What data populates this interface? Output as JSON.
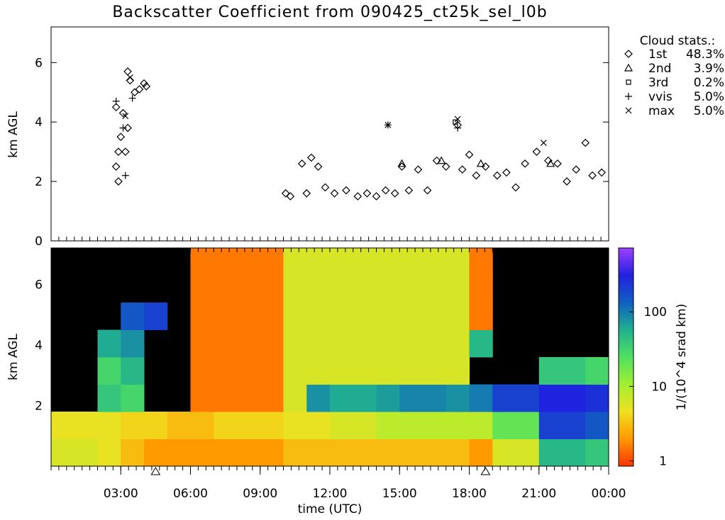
{
  "chart_data": [
    {
      "type": "scatter",
      "title": "Backscatter Coefficient from 090425_ct25k_sel_l0b",
      "ylabel": "km AGL",
      "legend_title": "Cloud stats.:",
      "xlim": [
        0,
        24
      ],
      "ylim": [
        0,
        7.2
      ],
      "yticks": [
        0,
        2,
        4,
        6
      ],
      "color": "#000000",
      "series": [
        {
          "name": "1st",
          "share": "48.3%",
          "marker": "diamond",
          "x": [
            2.8,
            2.8,
            2.9,
            2.9,
            3.0,
            3.1,
            3.2,
            3.3,
            3.3,
            3.4,
            3.6,
            3.8,
            4.0,
            4.1,
            10.1,
            10.3,
            10.8,
            11.0,
            11.2,
            11.5,
            11.8,
            12.2,
            12.7,
            13.2,
            13.6,
            14.0,
            14.4,
            14.8,
            15.1,
            15.4,
            15.8,
            16.2,
            16.6,
            17.0,
            17.5,
            17.7,
            18.0,
            18.3,
            18.7,
            19.2,
            19.6,
            20.0,
            20.4,
            20.9,
            21.4,
            21.8,
            22.2,
            22.6,
            23.0,
            23.3,
            23.7
          ],
          "values": [
            4.5,
            2.5,
            2.0,
            3.0,
            3.5,
            4.3,
            3.0,
            3.8,
            5.7,
            5.4,
            5.0,
            5.1,
            5.3,
            5.2,
            1.6,
            1.5,
            2.6,
            1.6,
            2.8,
            2.5,
            1.8,
            1.6,
            1.7,
            1.5,
            1.6,
            1.5,
            1.7,
            1.6,
            2.5,
            1.7,
            2.4,
            1.7,
            2.7,
            2.5,
            3.9,
            2.4,
            2.9,
            2.2,
            2.5,
            2.2,
            2.3,
            1.8,
            2.6,
            3.0,
            2.7,
            2.6,
            2.0,
            2.4,
            3.3,
            2.2,
            2.3
          ]
        },
        {
          "name": "2nd",
          "share": "3.9%",
          "marker": "triangle",
          "x": [
            15.1,
            16.8,
            18.5,
            21.5
          ],
          "values": [
            2.6,
            2.7,
            2.6,
            2.6
          ]
        },
        {
          "name": "3rd",
          "share": "0.2%",
          "marker": "square",
          "x": [
            17.4
          ],
          "values": [
            4.0
          ]
        },
        {
          "name": "vvis",
          "share": "5.0%",
          "marker": "plus",
          "x": [
            2.8,
            3.1,
            3.2,
            3.5,
            14.5,
            17.5
          ],
          "values": [
            4.7,
            3.8,
            2.2,
            4.8,
            3.9,
            3.8
          ]
        },
        {
          "name": "max",
          "share": "5.0%",
          "marker": "cross",
          "x": [
            3.2,
            3.4,
            14.5,
            17.5,
            21.2
          ],
          "values": [
            4.2,
            5.5,
            3.9,
            4.1,
            3.3
          ]
        }
      ]
    },
    {
      "type": "heatmap",
      "xlabel": "time (UTC)",
      "ylabel": "km AGL",
      "colorbar_label": "1/(10^4 srad km)",
      "xlim": [
        0,
        24
      ],
      "ylim": [
        0,
        7.2
      ],
      "xticks": [
        {
          "value": 3,
          "label": "03:00"
        },
        {
          "value": 6,
          "label": "06:00"
        },
        {
          "value": 9,
          "label": "09:00"
        },
        {
          "value": 12,
          "label": "12:00"
        },
        {
          "value": 15,
          "label": "15:00"
        },
        {
          "value": 18,
          "label": "18:00"
        },
        {
          "value": 21,
          "label": "21:00"
        },
        {
          "value": 24,
          "label": "00:00"
        }
      ],
      "yticks": [
        2,
        4,
        6
      ],
      "clim": [
        0.85,
        720
      ],
      "cticks": [
        1,
        10,
        100
      ],
      "log_color": true,
      "colormap": [
        "#ff3300",
        "#ff9900",
        "#f0e020",
        "#a0f030",
        "#50e060",
        "#20b090",
        "#1060c0",
        "#2020e0",
        "#a040ff"
      ],
      "xbins": [
        0,
        1,
        2,
        3,
        4,
        5,
        6,
        7,
        8,
        9,
        10,
        11,
        12,
        13,
        14,
        15,
        16,
        17,
        18,
        19,
        20,
        21,
        22,
        23,
        24
      ],
      "ybins": [
        0,
        0.9,
        1.8,
        2.7,
        3.6,
        4.5,
        5.4,
        6.3,
        7.2
      ],
      "values": [
        [
          6,
          6,
          5,
          3,
          2,
          2,
          2,
          2,
          2,
          2,
          3,
          3,
          3,
          3,
          3,
          3,
          3,
          3,
          2,
          6,
          6,
          50,
          50,
          40
        ],
        [
          5,
          5,
          5,
          4,
          4,
          3,
          3,
          4,
          4,
          4,
          5,
          5,
          6,
          6,
          8,
          8,
          8,
          8,
          8,
          20,
          20,
          200,
          200,
          150
        ],
        [
          null,
          null,
          40,
          30,
          null,
          null,
          1.5,
          1.5,
          1.5,
          1.5,
          6,
          80,
          60,
          60,
          70,
          90,
          90,
          80,
          100,
          200,
          200,
          300,
          300,
          250
        ],
        [
          null,
          null,
          30,
          50,
          null,
          null,
          1.5,
          1.5,
          1.5,
          1.5,
          6,
          6,
          6,
          6,
          6,
          6,
          6,
          6,
          null,
          null,
          null,
          40,
          40,
          30
        ],
        [
          null,
          null,
          60,
          80,
          null,
          null,
          1.5,
          1.5,
          1.5,
          1.5,
          6,
          6,
          6,
          6,
          6,
          6,
          6,
          6,
          50,
          null,
          null,
          null,
          null,
          null
        ],
        [
          null,
          null,
          null,
          150,
          200,
          null,
          1.5,
          1.5,
          1.5,
          1.5,
          6,
          6,
          6,
          6,
          6,
          6,
          6,
          6,
          1.5,
          null,
          null,
          null,
          null,
          null
        ],
        [
          null,
          null,
          null,
          null,
          null,
          null,
          1.5,
          1.5,
          1.5,
          1.5,
          6,
          6,
          6,
          6,
          6,
          6,
          6,
          6,
          1.5,
          null,
          null,
          null,
          null,
          null
        ],
        [
          null,
          null,
          null,
          null,
          null,
          null,
          1.5,
          1.5,
          1.5,
          1.5,
          6,
          6,
          6,
          6,
          6,
          6,
          6,
          6,
          1.5,
          null,
          null,
          null,
          null,
          null
        ]
      ],
      "markers_x": [
        4.5,
        18.7
      ]
    }
  ]
}
